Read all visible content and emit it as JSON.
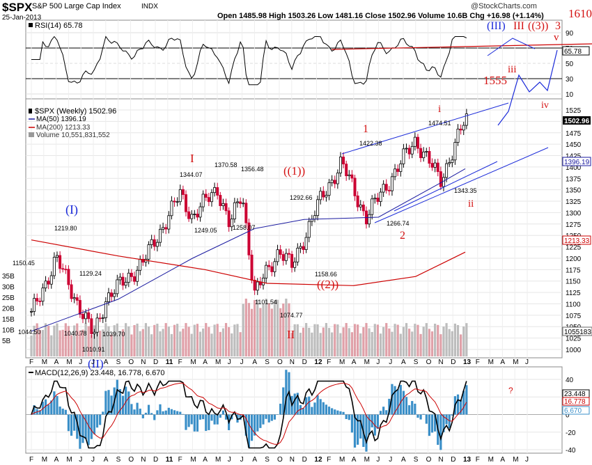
{
  "header": {
    "symbol": "$SPX",
    "name": "S&P 500 Large Cap Index",
    "exchange": "INDX",
    "date": "25-Jan-2013",
    "ohlc_text": "Open 1485.98  High 1503.26  Low 1481.16  Close 1502.96  Volume 10.6B  Chg +16.98 (+1.14%)",
    "copyright": "@StockCharts.com"
  },
  "rsi": {
    "label": "RSI(14) 65.78",
    "value_tag": "65.78",
    "ticks": [
      "90",
      "70",
      "50",
      "30",
      "10"
    ]
  },
  "price_panel": {
    "legend": [
      "$SPX (Weekly) 1502.96",
      "MA(50) 1396.19",
      "MA(200) 1213.33",
      "Volume 10,551,831,552"
    ],
    "price_tag": "1502.96",
    "ma50_tag": "1396.19",
    "ma200_tag": "1213.33",
    "volume_tag": "1055183",
    "price_ticks": [
      "1525",
      "1500",
      "1475",
      "1450",
      "1425",
      "1400",
      "1375",
      "1350",
      "1325",
      "1300",
      "1275",
      "1250",
      "1225",
      "1200",
      "1175",
      "1150",
      "1125",
      "1100",
      "1075",
      "1050",
      "1025",
      "1000"
    ],
    "volume_ticks": [
      "35B",
      "30B",
      "25B",
      "20B",
      "15B",
      "10B",
      "5B"
    ],
    "point_labels": [
      "1150.45",
      "1044.50",
      "1219.80",
      "1040.78",
      "1010.91",
      "1129.24",
      "1039.70",
      "1344.07",
      "1370.58",
      "1249.05",
      "1356.48",
      "1258.07",
      "1292.66",
      "1101.54",
      "1074.77",
      "1158.66",
      "1422.38",
      "1266.74",
      "1474.51",
      "1343.35"
    ],
    "wave_labels": [
      "(I)",
      "(II)",
      "I",
      "II",
      "((1))",
      "((2))",
      "1",
      "2",
      "i",
      "ii",
      "1555",
      "iii",
      "iv",
      "v",
      "1610",
      "(III)",
      "III",
      "((3))",
      "3"
    ]
  },
  "macd": {
    "label": "MACD(12,26,9) 23.448, 16.778, 6.670",
    "macd_tag": "23.448",
    "signal_tag": "16.778",
    "hist_tag": "6.670",
    "ticks": [
      "40",
      "20",
      "0",
      "-20",
      "-40"
    ],
    "question_mark": "?"
  },
  "x_axis": [
    "F",
    "M",
    "A",
    "M",
    "J",
    "J",
    "A",
    "S",
    "O",
    "N",
    "D",
    "11",
    "F",
    "M",
    "A",
    "M",
    "J",
    "J",
    "A",
    "S",
    "O",
    "N",
    "D",
    "12",
    "F",
    "M",
    "A",
    "M",
    "J",
    "J",
    "A",
    "S",
    "O",
    "N",
    "D",
    "13",
    "F",
    "M",
    "A",
    "M",
    "J"
  ],
  "colors": {
    "up": "#000000",
    "down": "#cc0033",
    "ma50": "#1a1aa0",
    "ma200": "#cc0000",
    "wave_red": "#d41111",
    "wave_blue": "#1a2ad9",
    "volume": "#999999",
    "macd_hist": "#3a8fc8"
  },
  "chart_data": {
    "type": "line",
    "title": "$SPX S&P 500 Large Cap Index INDX",
    "x_start": "2010-02",
    "x_end": "2013-06",
    "price_ylim": [
      1000,
      1525
    ],
    "close_anchors": [
      {
        "date": "2010-02",
        "value": 1075
      },
      {
        "date": "2010-04",
        "value": 1200
      },
      {
        "date": "2010-07",
        "value": 1030
      },
      {
        "date": "2010-08",
        "value": 1110
      },
      {
        "date": "2010-11",
        "value": 1190
      },
      {
        "date": "2011-02",
        "value": 1340
      },
      {
        "date": "2011-03",
        "value": 1290
      },
      {
        "date": "2011-05",
        "value": 1355
      },
      {
        "date": "2011-06",
        "value": 1270
      },
      {
        "date": "2011-07",
        "value": 1345
      },
      {
        "date": "2011-08",
        "value": 1120
      },
      {
        "date": "2011-10",
        "value": 1220
      },
      {
        "date": "2011-11",
        "value": 1180
      },
      {
        "date": "2012-01",
        "value": 1310
      },
      {
        "date": "2012-03",
        "value": 1410
      },
      {
        "date": "2012-05",
        "value": 1290
      },
      {
        "date": "2012-09",
        "value": 1460
      },
      {
        "date": "2012-11",
        "value": 1370
      },
      {
        "date": "2013-01",
        "value": 1502.96
      }
    ],
    "ma50": [
      {
        "date": "2010-02",
        "value": 1040
      },
      {
        "date": "2010-09",
        "value": 1110
      },
      {
        "date": "2011-03",
        "value": 1200
      },
      {
        "date": "2011-08",
        "value": 1265
      },
      {
        "date": "2011-12",
        "value": 1285
      },
      {
        "date": "2012-06",
        "value": 1290
      },
      {
        "date": "2012-11",
        "value": 1365
      },
      {
        "date": "2013-01",
        "value": 1396.19
      }
    ],
    "ma200": [
      {
        "date": "2010-02",
        "value": 1240
      },
      {
        "date": "2010-09",
        "value": 1205
      },
      {
        "date": "2011-04",
        "value": 1175
      },
      {
        "date": "2011-09",
        "value": 1145
      },
      {
        "date": "2012-04",
        "value": 1140
      },
      {
        "date": "2012-09",
        "value": 1160
      },
      {
        "date": "2013-01",
        "value": 1213.33
      }
    ],
    "rsi_current": 65.78,
    "macd_current": {
      "macd": 23.448,
      "signal": 16.778,
      "histogram": 6.67
    },
    "macd_ylim": [
      -40,
      40
    ]
  }
}
